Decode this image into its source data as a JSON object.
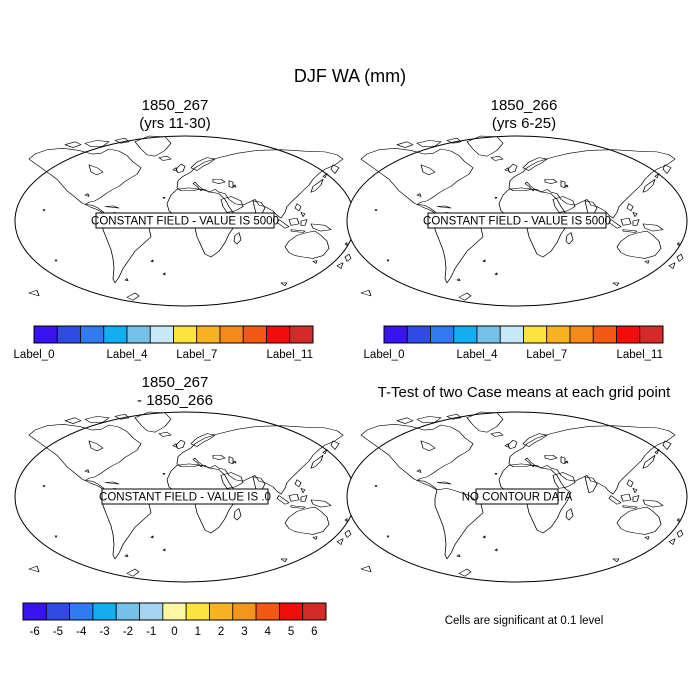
{
  "title": "DJF WA (mm)",
  "panels": [
    {
      "title_line1": "1850_267",
      "title_line2": "(yrs 11-30)",
      "message": "CONSTANT FIELD - VALUE IS 5000"
    },
    {
      "title_line1": "1850_266",
      "title_line2": "(yrs 6-25)",
      "message": "CONSTANT FIELD - VALUE IS 5000"
    },
    {
      "title_line1": "1850_267",
      "title_line2": "- 1850_266",
      "message": "CONSTANT FIELD - VALUE IS .0"
    },
    {
      "title_line1": "T-Test of two Case means at each grid point",
      "title_line2": "",
      "message": "NO CONTOUR DATA"
    }
  ],
  "colorbar_top": {
    "colors": [
      "#3A13F2",
      "#2E4BE3",
      "#2F7BEF",
      "#12AEF0",
      "#74C2EA",
      "#C7E9F7",
      "#FCE43C",
      "#F9B322",
      "#F58A1C",
      "#F25915",
      "#F20C0C",
      "#D42A2A"
    ],
    "labels": [
      "Label_0",
      "Label_4",
      "Label_7",
      "Label_11"
    ],
    "label_boundaries": [
      0,
      4,
      7,
      11
    ]
  },
  "colorbar_bottom": {
    "colors": [
      "#3A13F2",
      "#2E4BE3",
      "#2F7BEF",
      "#12AEF0",
      "#74C2EA",
      "#A4D4EF",
      "#FDF7A1",
      "#FCE43C",
      "#F9B322",
      "#F5961C",
      "#F25915",
      "#F20C0C",
      "#D42A2A"
    ],
    "labels": [
      "-6",
      "-5",
      "-4",
      "-3",
      "-2",
      "-1",
      "0",
      "1",
      "2",
      "3",
      "4",
      "5",
      "6"
    ]
  },
  "footnote": "Cells are significant at 0.1 level"
}
